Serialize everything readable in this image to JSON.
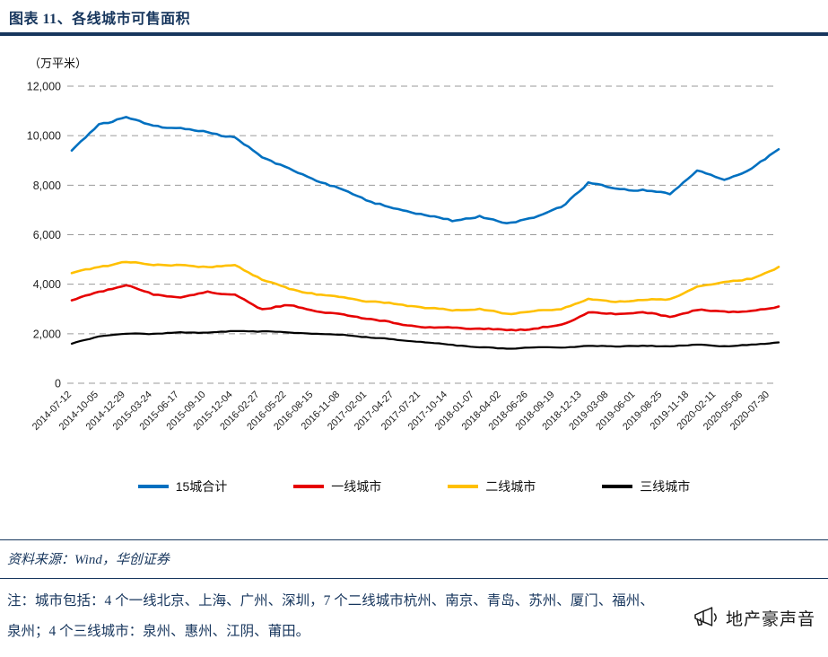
{
  "header": {
    "title": "图表 11、各线城市可售面积"
  },
  "chart": {
    "unit_label": "（万平米）"
  },
  "chart_data": {
    "type": "line",
    "title": "各线城市可售面积",
    "xlabel": "",
    "ylabel": "万平米",
    "ylim": [
      0,
      12000
    ],
    "ytick_interval": 2000,
    "ytick_labels": [
      "0",
      "2,000",
      "4,000",
      "6,000",
      "8,000",
      "10,000",
      "12,000"
    ],
    "grid": "horizontal-dashed",
    "legend_position": "bottom",
    "categories": [
      "2014-07-12",
      "2014-10-05",
      "2014-12-29",
      "2015-03-24",
      "2015-06-17",
      "2015-09-10",
      "2015-12-04",
      "2016-02-27",
      "2016-05-22",
      "2016-08-15",
      "2016-11-08",
      "2017-02-01",
      "2017-04-27",
      "2017-07-21",
      "2017-10-14",
      "2018-01-07",
      "2018-04-02",
      "2018-06-26",
      "2018-09-19",
      "2018-12-13",
      "2019-03-08",
      "2019-06-01",
      "2019-08-25",
      "2019-11-18",
      "2020-02-11",
      "2020-05-06",
      "2020-07-30"
    ],
    "series": [
      {
        "name": "15城合计",
        "color": "#0070C0",
        "values": [
          9400,
          10450,
          10750,
          10400,
          10300,
          10150,
          9900,
          9150,
          8650,
          8200,
          7800,
          7350,
          7000,
          6800,
          6550,
          6750,
          6450,
          6700,
          7100,
          8100,
          7850,
          7800,
          7650,
          8600,
          8200,
          8650,
          9450
        ]
      },
      {
        "name": "一线城市",
        "color": "#E60000",
        "values": [
          3350,
          3700,
          3950,
          3600,
          3450,
          3700,
          3550,
          3000,
          3150,
          2900,
          2750,
          2600,
          2400,
          2250,
          2250,
          2200,
          2150,
          2200,
          2350,
          2850,
          2800,
          2850,
          2700,
          2950,
          2900,
          2900,
          3100
        ]
      },
      {
        "name": "二线城市",
        "color": "#FFC000",
        "values": [
          4450,
          4700,
          4900,
          4800,
          4750,
          4700,
          4750,
          4200,
          3800,
          3600,
          3450,
          3300,
          3200,
          3050,
          2950,
          3000,
          2800,
          2900,
          3000,
          3400,
          3300,
          3350,
          3400,
          3900,
          4100,
          4200,
          4700
        ]
      },
      {
        "name": "三线城市",
        "color": "#000000",
        "values": [
          1600,
          1900,
          2000,
          2000,
          2050,
          2050,
          2100,
          2100,
          2050,
          2000,
          1950,
          1850,
          1750,
          1650,
          1550,
          1450,
          1400,
          1450,
          1450,
          1500,
          1500,
          1500,
          1500,
          1550,
          1500,
          1550,
          1650
        ]
      }
    ]
  },
  "footer": {
    "source": "资料来源：Wind，华创证券",
    "note_line1": "注：城市包括：4 个一线北京、上海、广州、深圳，7 个二线城市杭州、南京、青岛、苏州、厦门、福州、",
    "note_line2": "泉州；4 个三线城市：泉州、惠州、江阴、莆田。",
    "brand": "地产豪声音"
  },
  "colors": {
    "accent_navy": "#17365D",
    "gridline": "#9a9a9a"
  }
}
